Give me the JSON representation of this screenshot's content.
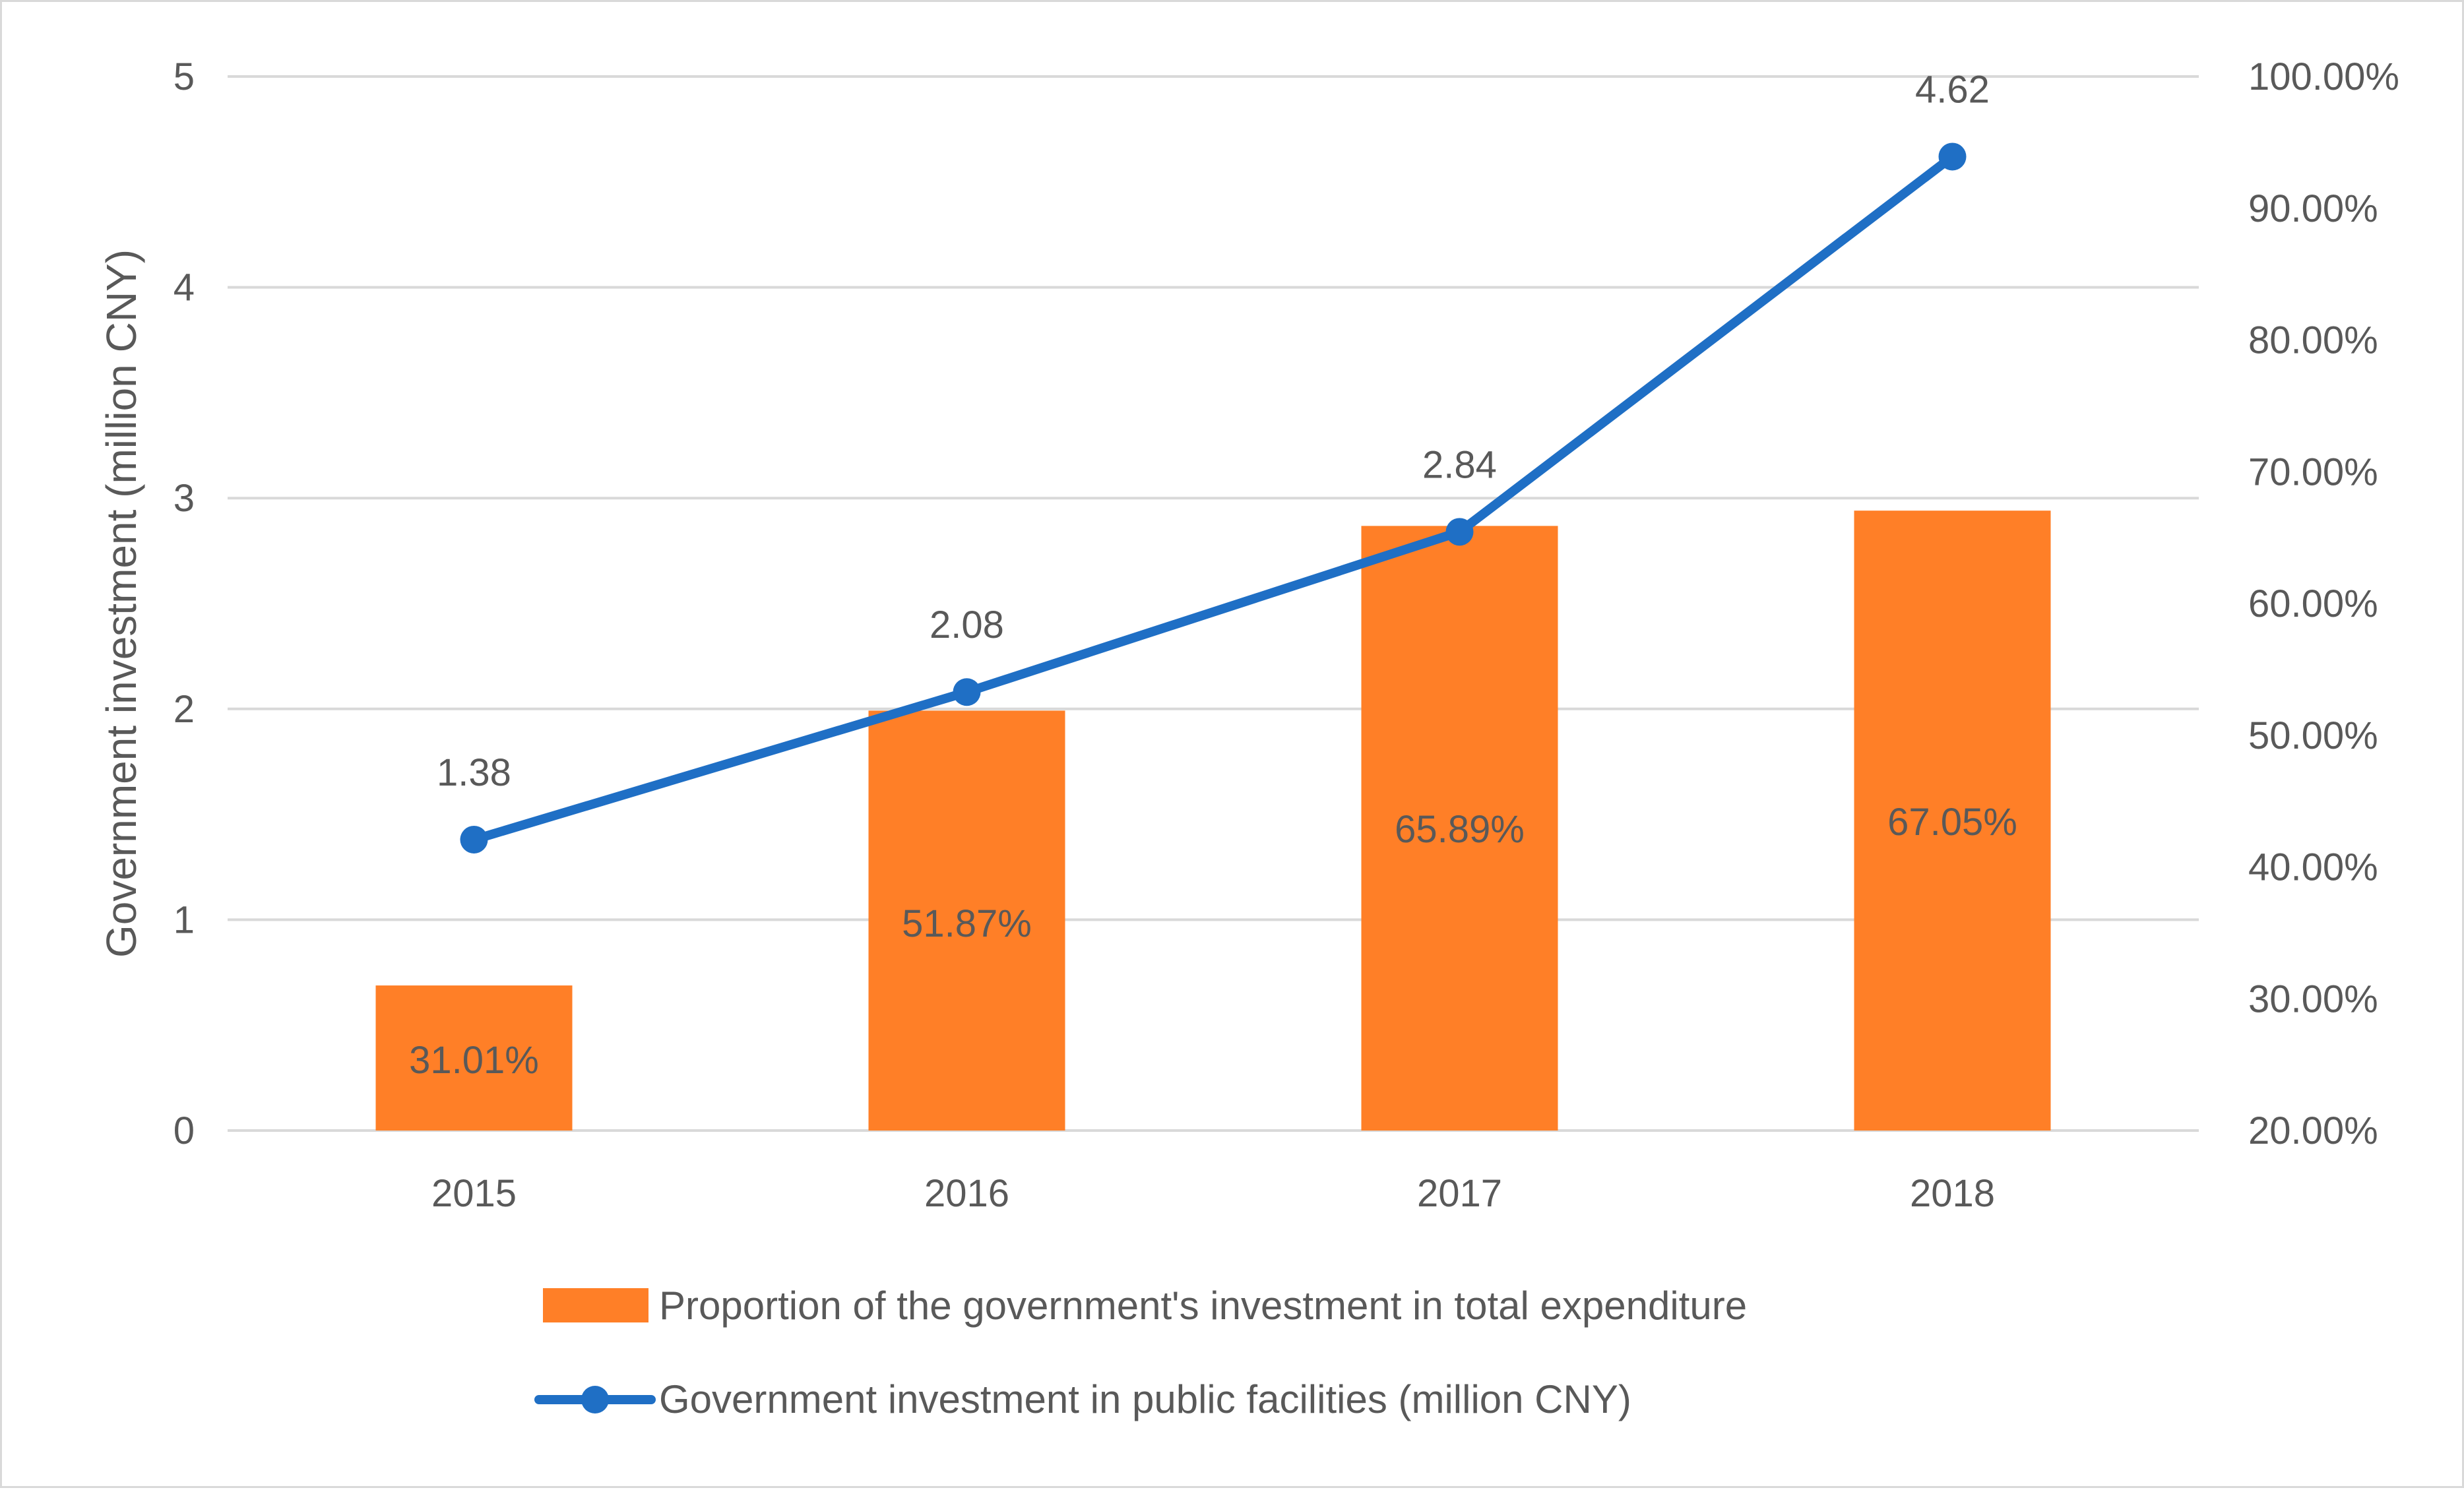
{
  "chart_data": {
    "type": "bar+line",
    "categories": [
      "2015",
      "2016",
      "2017",
      "2018"
    ],
    "bar_series": {
      "name": "Proportion of the government's investment in total expenditure",
      "values": [
        31.01,
        51.87,
        65.89,
        67.05
      ],
      "labels": [
        "31.01%",
        "51.87%",
        "65.89%",
        "67.05%"
      ],
      "axis": "right",
      "color": "#FF7F27"
    },
    "line_series": {
      "name": "Government investment in public facilities (million CNY)",
      "values": [
        1.38,
        2.08,
        2.84,
        4.62
      ],
      "labels": [
        "1.38",
        "2.08",
        "2.84",
        "4.62"
      ],
      "axis": "left",
      "color": "#1F6FC5"
    },
    "left_axis": {
      "title": "Government investment (million CNY)",
      "range": [
        0,
        5
      ],
      "ticks": [
        "0",
        "1",
        "2",
        "3",
        "4",
        "5"
      ]
    },
    "right_axis": {
      "range": [
        20,
        100
      ],
      "ticks": [
        "20.00%",
        "30.00%",
        "40.00%",
        "50.00%",
        "60.00%",
        "70.00%",
        "80.00%",
        "90.00%",
        "100.00%"
      ]
    },
    "grid": true,
    "legend_position": "bottom"
  }
}
